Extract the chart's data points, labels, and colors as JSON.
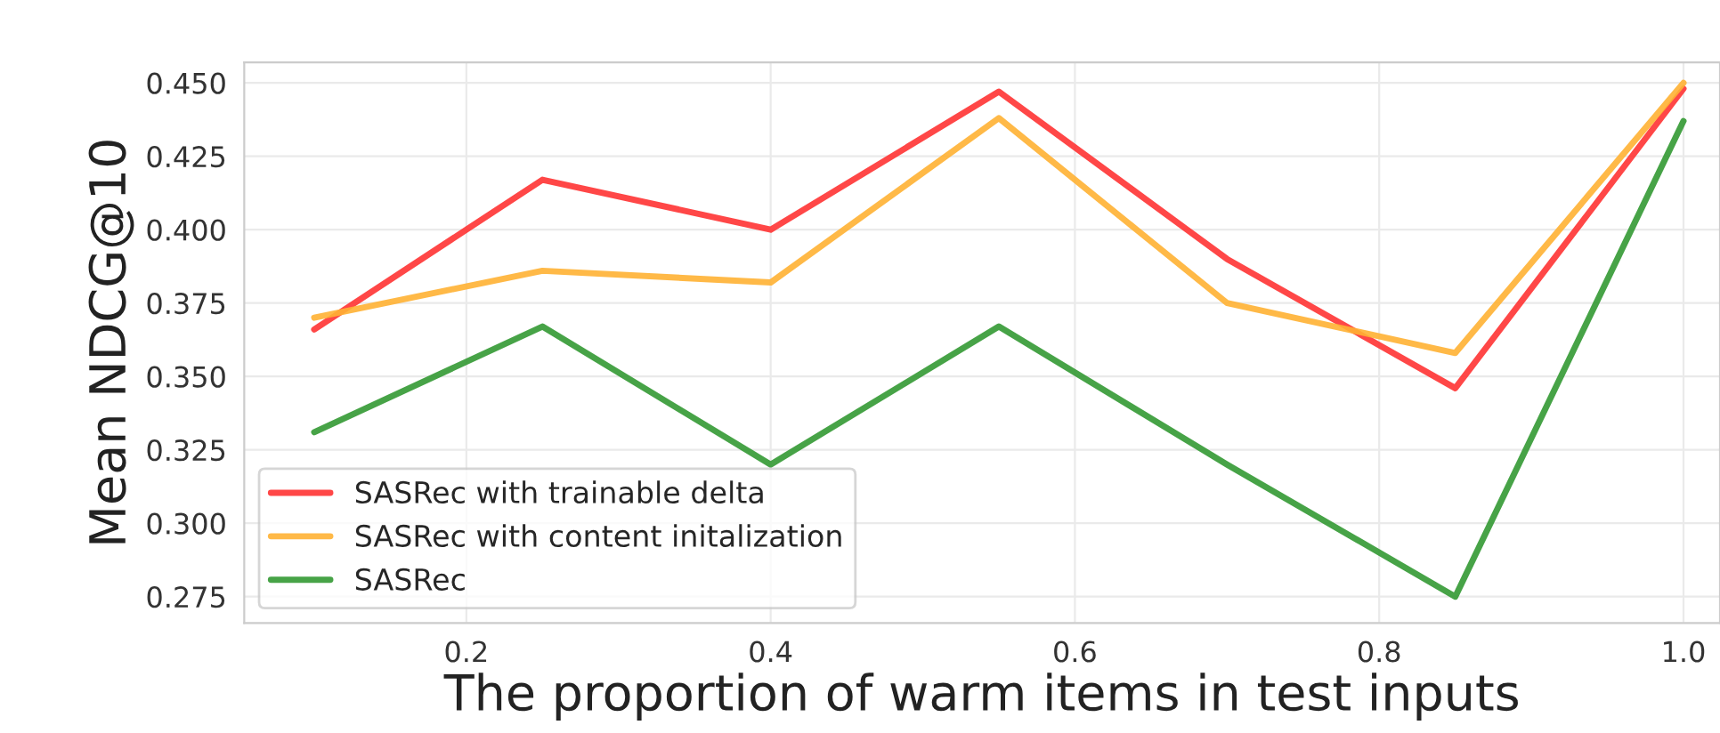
{
  "chart_data": {
    "type": "line",
    "xlabel": "The proportion of warm items in test inputs",
    "ylabel": "Mean NDCG@10",
    "x": [
      0.1,
      0.25,
      0.4,
      0.55,
      0.7,
      0.85,
      1.0
    ],
    "series": [
      {
        "name": "SASRec with trainable delta",
        "color": "#ff3333",
        "values": [
          0.366,
          0.417,
          0.4,
          0.447,
          0.39,
          0.346,
          0.448
        ]
      },
      {
        "name": "SASRec with content initalization",
        "color": "#ffb133",
        "values": [
          0.37,
          0.386,
          0.382,
          0.438,
          0.375,
          0.358,
          0.45
        ]
      },
      {
        "name": "SASRec",
        "color": "#339933",
        "values": [
          0.331,
          0.367,
          0.32,
          0.367,
          0.32,
          0.275,
          0.437
        ]
      }
    ],
    "xlim": [
      0.054,
      1.024
    ],
    "ylim": [
      0.266,
      0.457
    ],
    "xticks": [
      {
        "value": 0.2,
        "label": "0.2"
      },
      {
        "value": 0.4,
        "label": "0.4"
      },
      {
        "value": 0.6,
        "label": "0.6"
      },
      {
        "value": 0.8,
        "label": "0.8"
      },
      {
        "value": 1.0,
        "label": "1.0"
      }
    ],
    "yticks": [
      {
        "value": 0.275,
        "label": "0.275"
      },
      {
        "value": 0.3,
        "label": "0.300"
      },
      {
        "value": 0.325,
        "label": "0.325"
      },
      {
        "value": 0.35,
        "label": "0.350"
      },
      {
        "value": 0.375,
        "label": "0.375"
      },
      {
        "value": 0.4,
        "label": "0.400"
      },
      {
        "value": 0.425,
        "label": "0.425"
      },
      {
        "value": 0.45,
        "label": "0.450"
      }
    ],
    "grid": true,
    "legend": "bottom left",
    "marker": "none",
    "line_style": "solid"
  }
}
